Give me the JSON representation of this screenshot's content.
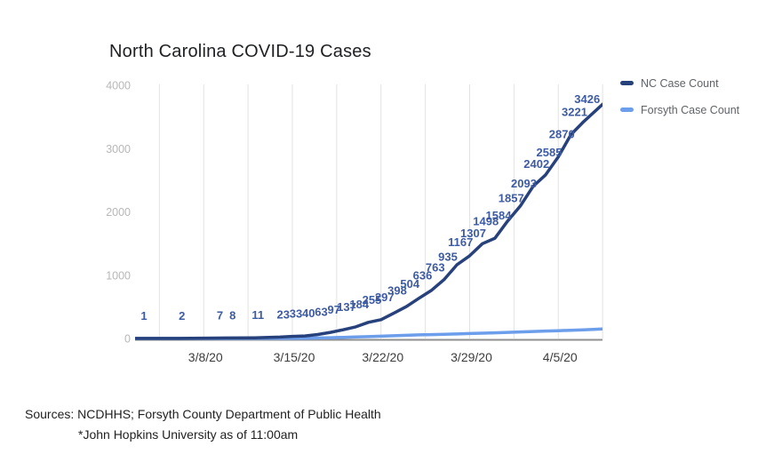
{
  "title": "North Carolina COVID-19 Cases",
  "legend": {
    "items": [
      {
        "label": "NC Case Count",
        "color": "#26417c"
      },
      {
        "label": "Forsyth Case Count",
        "color": "#6d9eeb"
      }
    ]
  },
  "sources": {
    "line1": "Sources: NCDHHS; Forsyth County Department of Public Health",
    "line2": "*John Hopkins University as of 11:00am"
  },
  "chart_data": {
    "type": "line",
    "title": "North Carolina COVID-19 Cases",
    "grid": "vertical-only",
    "legend_position": "right-top",
    "label_color": "#3d5ba3",
    "axis_line_color": "#8f8f8f",
    "gridline_color": "#e2e2e2",
    "y_axis": {
      "min": 0,
      "max": 4000,
      "ticks": [
        0,
        1000,
        2000,
        3000,
        4000
      ]
    },
    "x_axis": {
      "start_date": "3/3/20",
      "tick_labels": [
        "3/8/20",
        "3/15/20",
        "3/22/20",
        "3/29/20",
        "4/5/20"
      ],
      "tick_days": [
        5,
        12,
        19,
        26,
        33
      ],
      "gridline_days": [
        1.5,
        5,
        8.5,
        12,
        15.5,
        19,
        22.5,
        26,
        29.5,
        33,
        36.5
      ]
    },
    "series": [
      {
        "name": "Forsyth Case Count",
        "color": "#6d9eeb",
        "labels_shown": false,
        "points": [
          {
            "day": 0,
            "date": "3/3/20",
            "value": 0,
            "label": ""
          },
          {
            "day": 3,
            "date": "3/6/20",
            "value": 0,
            "label": ""
          },
          {
            "day": 6,
            "date": "3/9/20",
            "value": 0,
            "label": ""
          },
          {
            "day": 7,
            "date": "3/10/20",
            "value": 0,
            "label": ""
          },
          {
            "day": 9,
            "date": "3/12/20",
            "value": 1,
            "label": ""
          },
          {
            "day": 11,
            "date": "3/14/20",
            "value": 2,
            "label": ""
          },
          {
            "day": 12,
            "date": "3/15/20",
            "value": 2,
            "label": ""
          },
          {
            "day": 13,
            "date": "3/16/20",
            "value": 4,
            "label": ""
          },
          {
            "day": 14,
            "date": "3/17/20",
            "value": 8,
            "label": ""
          },
          {
            "day": 15,
            "date": "3/18/20",
            "value": 12,
            "label": ""
          },
          {
            "day": 16,
            "date": "3/19/20",
            "value": 18,
            "label": ""
          },
          {
            "day": 17,
            "date": "3/20/20",
            "value": 24,
            "label": ""
          },
          {
            "day": 18,
            "date": "3/21/20",
            "value": 30,
            "label": ""
          },
          {
            "day": 19,
            "date": "3/22/20",
            "value": 37,
            "label": ""
          },
          {
            "day": 20,
            "date": "3/23/20",
            "value": 44,
            "label": ""
          },
          {
            "day": 21,
            "date": "3/24/20",
            "value": 51,
            "label": ""
          },
          {
            "day": 22,
            "date": "3/25/20",
            "value": 57,
            "label": ""
          },
          {
            "day": 23,
            "date": "3/26/20",
            "value": 62,
            "label": ""
          },
          {
            "day": 24,
            "date": "3/27/20",
            "value": 67,
            "label": ""
          },
          {
            "day": 25,
            "date": "3/28/20",
            "value": 72,
            "label": ""
          },
          {
            "day": 26,
            "date": "3/29/20",
            "value": 78,
            "label": ""
          },
          {
            "day": 27,
            "date": "3/30/20",
            "value": 84,
            "label": ""
          },
          {
            "day": 28,
            "date": "3/31/20",
            "value": 90,
            "label": ""
          },
          {
            "day": 29,
            "date": "4/1/20",
            "value": 97,
            "label": ""
          },
          {
            "day": 30,
            "date": "4/2/20",
            "value": 104,
            "label": ""
          },
          {
            "day": 31,
            "date": "4/3/20",
            "value": 111,
            "label": ""
          },
          {
            "day": 32,
            "date": "4/4/20",
            "value": 118,
            "label": ""
          },
          {
            "day": 33,
            "date": "4/5/20",
            "value": 124,
            "label": ""
          },
          {
            "day": 34,
            "date": "4/6/20",
            "value": 131,
            "label": ""
          },
          {
            "day": 35,
            "date": "4/7/20",
            "value": 138,
            "label": ""
          },
          {
            "day": 36.5,
            "date": "",
            "value": 150,
            "label": ""
          }
        ]
      },
      {
        "name": "NC Case Count",
        "color": "#26417c",
        "labels_shown": true,
        "points": [
          {
            "day": 0,
            "date": "3/3/20",
            "value": 1,
            "label": "1"
          },
          {
            "day": 3,
            "date": "3/6/20",
            "value": 2,
            "label": "2"
          },
          {
            "day": 6,
            "date": "3/9/20",
            "value": 7,
            "label": "7"
          },
          {
            "day": 7,
            "date": "3/10/20",
            "value": 8,
            "label": "8"
          },
          {
            "day": 9,
            "date": "3/12/20",
            "value": 11,
            "label": "11"
          },
          {
            "day": 11,
            "date": "3/14/20",
            "value": 23,
            "label": "23"
          },
          {
            "day": 12,
            "date": "3/15/20",
            "value": 33,
            "label": "33"
          },
          {
            "day": 13,
            "date": "3/16/20",
            "value": 40,
            "label": "40"
          },
          {
            "day": 14,
            "date": "3/17/20",
            "value": 63,
            "label": "63"
          },
          {
            "day": 15,
            "date": "3/18/20",
            "value": 97,
            "label": "97"
          },
          {
            "day": 16,
            "date": "3/19/20",
            "value": 137,
            "label": "137"
          },
          {
            "day": 17,
            "date": "3/20/20",
            "value": 184,
            "label": "184"
          },
          {
            "day": 18,
            "date": "3/21/20",
            "value": 255,
            "label": "255"
          },
          {
            "day": 19,
            "date": "3/22/20",
            "value": 297,
            "label": "297"
          },
          {
            "day": 20,
            "date": "3/23/20",
            "value": 398,
            "label": "398"
          },
          {
            "day": 21,
            "date": "3/24/20",
            "value": 504,
            "label": "504"
          },
          {
            "day": 22,
            "date": "3/25/20",
            "value": 636,
            "label": "636"
          },
          {
            "day": 23,
            "date": "3/26/20",
            "value": 763,
            "label": "763"
          },
          {
            "day": 24,
            "date": "3/27/20",
            "value": 935,
            "label": "935"
          },
          {
            "day": 25,
            "date": "3/28/20",
            "value": 1167,
            "label": "1167"
          },
          {
            "day": 26,
            "date": "3/29/20",
            "value": 1307,
            "label": "1307"
          },
          {
            "day": 27,
            "date": "3/30/20",
            "value": 1498,
            "label": "1498"
          },
          {
            "day": 28,
            "date": "3/31/20",
            "value": 1584,
            "label": "1584"
          },
          {
            "day": 29,
            "date": "4/1/20",
            "value": 1857,
            "label": "1857"
          },
          {
            "day": 30,
            "date": "4/2/20",
            "value": 2093,
            "label": "2093"
          },
          {
            "day": 31,
            "date": "4/3/20",
            "value": 2402,
            "label": "2402"
          },
          {
            "day": 32,
            "date": "4/4/20",
            "value": 2585,
            "label": "2585"
          },
          {
            "day": 33,
            "date": "4/5/20",
            "value": 2870,
            "label": "2870"
          },
          {
            "day": 34,
            "date": "4/6/20",
            "value": 3221,
            "label": "3221"
          },
          {
            "day": 35,
            "date": "4/7/20",
            "value": 3426,
            "label": "3426"
          },
          {
            "day": 36.5,
            "date": "",
            "value": 3700,
            "label": ""
          }
        ]
      }
    ]
  }
}
